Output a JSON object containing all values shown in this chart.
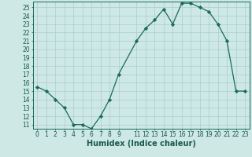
{
  "xlabel": "Humidex (Indice chaleur)",
  "x_values": [
    0,
    1,
    2,
    3,
    4,
    5,
    6,
    7,
    8,
    9,
    11,
    12,
    13,
    14,
    15,
    16,
    17,
    18,
    19,
    20,
    21,
    22,
    23
  ],
  "y_values": [
    15.5,
    15.0,
    14.0,
    13.0,
    11.0,
    11.0,
    10.5,
    12.0,
    14.0,
    17.0,
    21.0,
    22.5,
    23.5,
    24.8,
    23.0,
    25.5,
    25.5,
    25.0,
    24.5,
    23.0,
    21.0,
    15.0,
    15.0
  ],
  "line_color": "#1a6b5a",
  "marker": "D",
  "marker_size": 2.2,
  "bg_color": "#cde8e5",
  "grid_color": "#aacfcc",
  "ylim": [
    10.5,
    25.7
  ],
  "xlim": [
    -0.5,
    23.5
  ],
  "yticks": [
    11,
    12,
    13,
    14,
    15,
    16,
    17,
    18,
    19,
    20,
    21,
    22,
    23,
    24,
    25
  ],
  "xticks": [
    0,
    1,
    2,
    3,
    4,
    5,
    6,
    7,
    8,
    9,
    11,
    12,
    13,
    14,
    15,
    16,
    17,
    18,
    19,
    20,
    21,
    22,
    23
  ],
  "tick_fontsize": 5.5,
  "xlabel_fontsize": 7.0,
  "xlabel_fontweight": "bold",
  "tick_color": "#1a5a4a",
  "spine_color": "#1a6b5a"
}
